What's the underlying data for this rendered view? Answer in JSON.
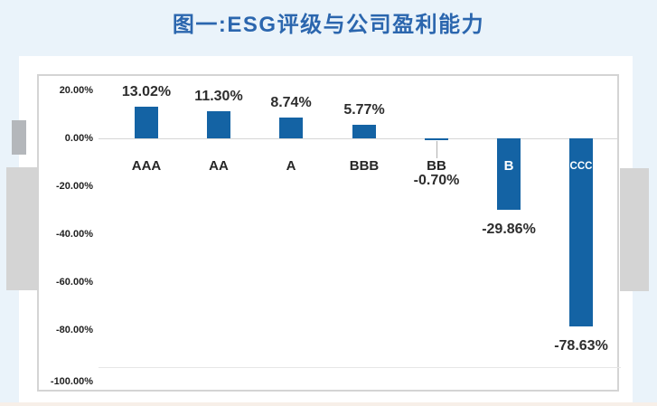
{
  "header": {
    "title": "图一:ESG评级与公司盈利能力"
  },
  "colors": {
    "title": "#2b66ae",
    "bar": "#1463a4",
    "page_background": "#eaf3fa",
    "panel_background": "#ffffff",
    "chart_border": "#d4d4d4",
    "gridline_zero": "#d6d6d6",
    "gridline_bottom": "#e7e7e7",
    "label_text": "#2d2d2d",
    "inbar_label_text": "#ffffff",
    "grey_block_light": "#d4d4d4",
    "grey_block_dark": "#b4b7bb",
    "bottom_strip": "#f7efe8"
  },
  "chart_data": {
    "type": "bar",
    "title": "图一:ESG评级与公司盈利能力",
    "categories": [
      "AAA",
      "AA",
      "A",
      "BBB",
      "BB",
      "B",
      "CCC"
    ],
    "values": [
      13.02,
      11.3,
      8.74,
      5.77,
      -0.7,
      -29.86,
      -78.63
    ],
    "value_labels": [
      "13.02%",
      "11.30%",
      "8.74%",
      "5.77%",
      "-0.70%",
      "-29.86%",
      "-78.63%"
    ],
    "xlabel": "",
    "ylabel": "",
    "ylim": [
      -100,
      20
    ],
    "yticks": [
      {
        "label": "20.00%",
        "value": 20
      },
      {
        "label": "0.00%",
        "value": 0
      },
      {
        "label": "-20.00%",
        "value": -20
      },
      {
        "label": "-40.00%",
        "value": -40
      },
      {
        "label": "-60.00%",
        "value": -60
      },
      {
        "label": "-80.00%",
        "value": -80
      },
      {
        "label": "-100.00%",
        "value": -100
      }
    ],
    "legend": null,
    "grid": "solid axis line at 0%, faint line at -100% only",
    "bar_color": "#1463a4",
    "label_placement": "positive bars: value above bar, category below axis; BB: category and value below axis with leader line; B and CCC: category inside bar in white, value below bar"
  }
}
